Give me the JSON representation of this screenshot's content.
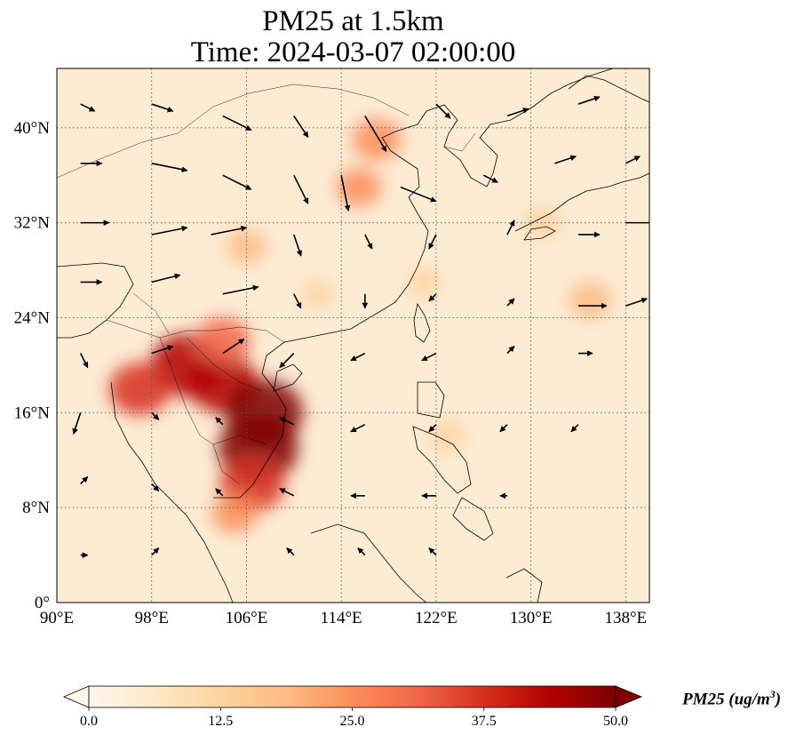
{
  "title_line1": "PM25 at 1.5km",
  "title_line2": "Time: 2024-03-07 02:00:00",
  "lon_ticks": [
    "90°E",
    "98°E",
    "106°E",
    "114°E",
    "122°E",
    "130°E",
    "138°E"
  ],
  "lat_ticks": [
    "0°",
    "8°N",
    "16°N",
    "24°N",
    "32°N",
    "40°N"
  ],
  "colorbar": {
    "label_prefix": "PM25 (ug/m",
    "label_sup": "3",
    "label_suffix": ")",
    "ticks": [
      "0.0",
      "12.5",
      "25.0",
      "37.5",
      "50.0"
    ],
    "colormap": "OrRd",
    "extend": "both"
  },
  "chart_data": {
    "type": "heatmap",
    "variable": "PM25",
    "xlim": [
      90,
      140
    ],
    "ylim": [
      0,
      45
    ],
    "vmin": 0,
    "vmax": 50,
    "grid": true,
    "hotspots": [
      {
        "lon": 101,
        "lat": 20,
        "value": 45
      },
      {
        "lon": 104,
        "lat": 18.5,
        "value": 42
      },
      {
        "lon": 107.5,
        "lat": 16,
        "value": 48
      },
      {
        "lon": 107,
        "lat": 13,
        "value": 50
      },
      {
        "lon": 106.5,
        "lat": 10,
        "value": 38
      },
      {
        "lon": 97,
        "lat": 18,
        "value": 35
      },
      {
        "lon": 104,
        "lat": 22,
        "value": 30
      },
      {
        "lon": 117,
        "lat": 39,
        "value": 25
      },
      {
        "lon": 115.5,
        "lat": 35,
        "value": 22
      },
      {
        "lon": 106,
        "lat": 30,
        "value": 18
      },
      {
        "lon": 131,
        "lat": 32,
        "value": 15
      },
      {
        "lon": 135,
        "lat": 25.5,
        "value": 20
      },
      {
        "lon": 112,
        "lat": 26,
        "value": 12
      },
      {
        "lon": 121,
        "lat": 27,
        "value": 12
      },
      {
        "lon": 123,
        "lat": 14,
        "value": 14
      },
      {
        "lon": 105,
        "lat": 7.5,
        "value": 22
      }
    ],
    "wind_vectors": [
      {
        "lon": 92,
        "lat": 42,
        "u": 2,
        "v": -1
      },
      {
        "lon": 98,
        "lat": 42,
        "u": 3,
        "v": -1
      },
      {
        "lon": 104,
        "lat": 41,
        "u": 4,
        "v": -2
      },
      {
        "lon": 110,
        "lat": 41,
        "u": 2,
        "v": -3
      },
      {
        "lon": 116,
        "lat": 41,
        "u": 3,
        "v": -5
      },
      {
        "lon": 122,
        "lat": 42,
        "u": 2,
        "v": -2
      },
      {
        "lon": 128,
        "lat": 41,
        "u": 3,
        "v": 1
      },
      {
        "lon": 134,
        "lat": 42,
        "u": 3,
        "v": 1
      },
      {
        "lon": 92,
        "lat": 37,
        "u": 3,
        "v": 0
      },
      {
        "lon": 98,
        "lat": 37,
        "u": 5,
        "v": -1
      },
      {
        "lon": 104,
        "lat": 36,
        "u": 4,
        "v": -2
      },
      {
        "lon": 110,
        "lat": 36,
        "u": 2,
        "v": -4
      },
      {
        "lon": 114,
        "lat": 36,
        "u": 1,
        "v": -5
      },
      {
        "lon": 119,
        "lat": 35,
        "u": 5,
        "v": -2
      },
      {
        "lon": 126,
        "lat": 36,
        "u": 2,
        "v": -1
      },
      {
        "lon": 132,
        "lat": 37,
        "u": 3,
        "v": 1
      },
      {
        "lon": 138,
        "lat": 37,
        "u": 2,
        "v": 1
      },
      {
        "lon": 92,
        "lat": 32,
        "u": 4,
        "v": 0
      },
      {
        "lon": 98,
        "lat": 31,
        "u": 5,
        "v": 1
      },
      {
        "lon": 103,
        "lat": 31,
        "u": 5,
        "v": 1
      },
      {
        "lon": 110,
        "lat": 31,
        "u": 1,
        "v": -3
      },
      {
        "lon": 116,
        "lat": 31,
        "u": 1,
        "v": -2
      },
      {
        "lon": 122,
        "lat": 31,
        "u": -1,
        "v": -2
      },
      {
        "lon": 128,
        "lat": 31,
        "u": 1,
        "v": 2
      },
      {
        "lon": 134,
        "lat": 31,
        "u": 3,
        "v": 0
      },
      {
        "lon": 138,
        "lat": 32,
        "u": 4,
        "v": 0
      },
      {
        "lon": 92,
        "lat": 27,
        "u": 3,
        "v": 0
      },
      {
        "lon": 98,
        "lat": 27,
        "u": 4,
        "v": 1
      },
      {
        "lon": 104,
        "lat": 26,
        "u": 5,
        "v": 1
      },
      {
        "lon": 110,
        "lat": 26,
        "u": 1,
        "v": -2
      },
      {
        "lon": 116,
        "lat": 26,
        "u": 0,
        "v": -2
      },
      {
        "lon": 122,
        "lat": 26,
        "u": -1,
        "v": -1
      },
      {
        "lon": 128,
        "lat": 25,
        "u": 1,
        "v": 1
      },
      {
        "lon": 134,
        "lat": 25,
        "u": 4,
        "v": 0
      },
      {
        "lon": 138,
        "lat": 25,
        "u": 3,
        "v": 1
      },
      {
        "lon": 92,
        "lat": 21,
        "u": 1,
        "v": -2
      },
      {
        "lon": 98,
        "lat": 21,
        "u": 3,
        "v": 1
      },
      {
        "lon": 104,
        "lat": 21,
        "u": 3,
        "v": 2
      },
      {
        "lon": 110,
        "lat": 21,
        "u": -2,
        "v": -2
      },
      {
        "lon": 116,
        "lat": 21,
        "u": -2,
        "v": -1
      },
      {
        "lon": 122,
        "lat": 21,
        "u": -2,
        "v": -1
      },
      {
        "lon": 128,
        "lat": 21,
        "u": 1,
        "v": 1
      },
      {
        "lon": 134,
        "lat": 21,
        "u": 2,
        "v": 0
      },
      {
        "lon": 92,
        "lat": 16,
        "u": -1,
        "v": -3
      },
      {
        "lon": 98,
        "lat": 16,
        "u": 1,
        "v": -1
      },
      {
        "lon": 104,
        "lat": 15,
        "u": -1,
        "v": 1
      },
      {
        "lon": 110,
        "lat": 15,
        "u": -2,
        "v": 1
      },
      {
        "lon": 116,
        "lat": 15,
        "u": -2,
        "v": -1
      },
      {
        "lon": 122,
        "lat": 15,
        "u": -1,
        "v": -1
      },
      {
        "lon": 128,
        "lat": 15,
        "u": -1,
        "v": -1
      },
      {
        "lon": 134,
        "lat": 15,
        "u": -1,
        "v": -1
      },
      {
        "lon": 92,
        "lat": 10,
        "u": 1,
        "v": 1
      },
      {
        "lon": 98,
        "lat": 10,
        "u": 1,
        "v": -1
      },
      {
        "lon": 104,
        "lat": 9,
        "u": -1,
        "v": 1
      },
      {
        "lon": 110,
        "lat": 9,
        "u": -2,
        "v": 1
      },
      {
        "lon": 116,
        "lat": 9,
        "u": -2,
        "v": 0
      },
      {
        "lon": 122,
        "lat": 9,
        "u": -2,
        "v": 0
      },
      {
        "lon": 128,
        "lat": 9,
        "u": -1,
        "v": 0
      },
      {
        "lon": 92,
        "lat": 4,
        "u": 1,
        "v": 0
      },
      {
        "lon": 98,
        "lat": 4,
        "u": 1,
        "v": 1
      },
      {
        "lon": 110,
        "lat": 4,
        "u": -1,
        "v": 1
      },
      {
        "lon": 116,
        "lat": 4,
        "u": -1,
        "v": 1
      },
      {
        "lon": 122,
        "lat": 4,
        "u": -1,
        "v": 1
      }
    ]
  }
}
